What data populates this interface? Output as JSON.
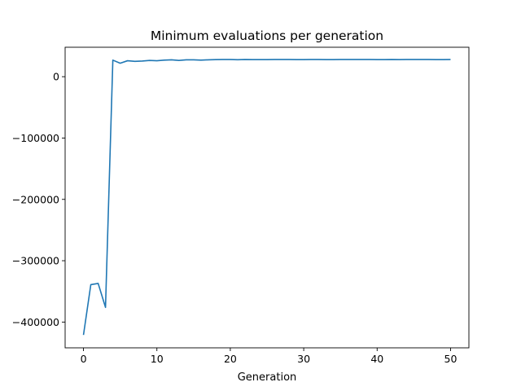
{
  "chart_data": {
    "type": "line",
    "title": "Minimum evaluations per generation",
    "xlabel": "Generation",
    "ylabel": "",
    "xlim": [
      -2.5,
      52.5
    ],
    "ylim": [
      -442000,
      48000
    ],
    "grid": false,
    "legend": "none",
    "x_ticks": [
      0,
      10,
      20,
      30,
      40,
      50
    ],
    "x_tick_labels": [
      "0",
      "10",
      "20",
      "30",
      "40",
      "50"
    ],
    "y_ticks": [
      0,
      -100000,
      -200000,
      -300000,
      -400000
    ],
    "y_tick_labels": [
      "0",
      "−100000",
      "−200000",
      "−300000",
      "−400000"
    ],
    "series": [
      {
        "color": "#1f77b4",
        "x": [
          0,
          1,
          2,
          3,
          4,
          5,
          6,
          7,
          8,
          9,
          10,
          11,
          12,
          13,
          14,
          15,
          16,
          17,
          18,
          19,
          20,
          21,
          22,
          23,
          24,
          25,
          26,
          27,
          28,
          29,
          30,
          31,
          32,
          33,
          34,
          35,
          36,
          37,
          38,
          39,
          40,
          41,
          42,
          43,
          44,
          45,
          46,
          47,
          48,
          49,
          50
        ],
        "values": [
          -421000,
          -339000,
          -337000,
          -376000,
          27000,
          22000,
          26000,
          25000,
          25500,
          26500,
          26000,
          27000,
          27500,
          26500,
          27500,
          27500,
          27000,
          27500,
          27800,
          28000,
          28000,
          27700,
          28000,
          27800,
          27800,
          27800,
          28000,
          28000,
          28000,
          27800,
          27800,
          28000,
          28000,
          27800,
          27800,
          28000,
          28000,
          28000,
          28000,
          28000,
          27800,
          27800,
          28000,
          27800,
          28000,
          28000,
          28000,
          28000,
          27800,
          27800,
          28000
        ]
      }
    ]
  }
}
